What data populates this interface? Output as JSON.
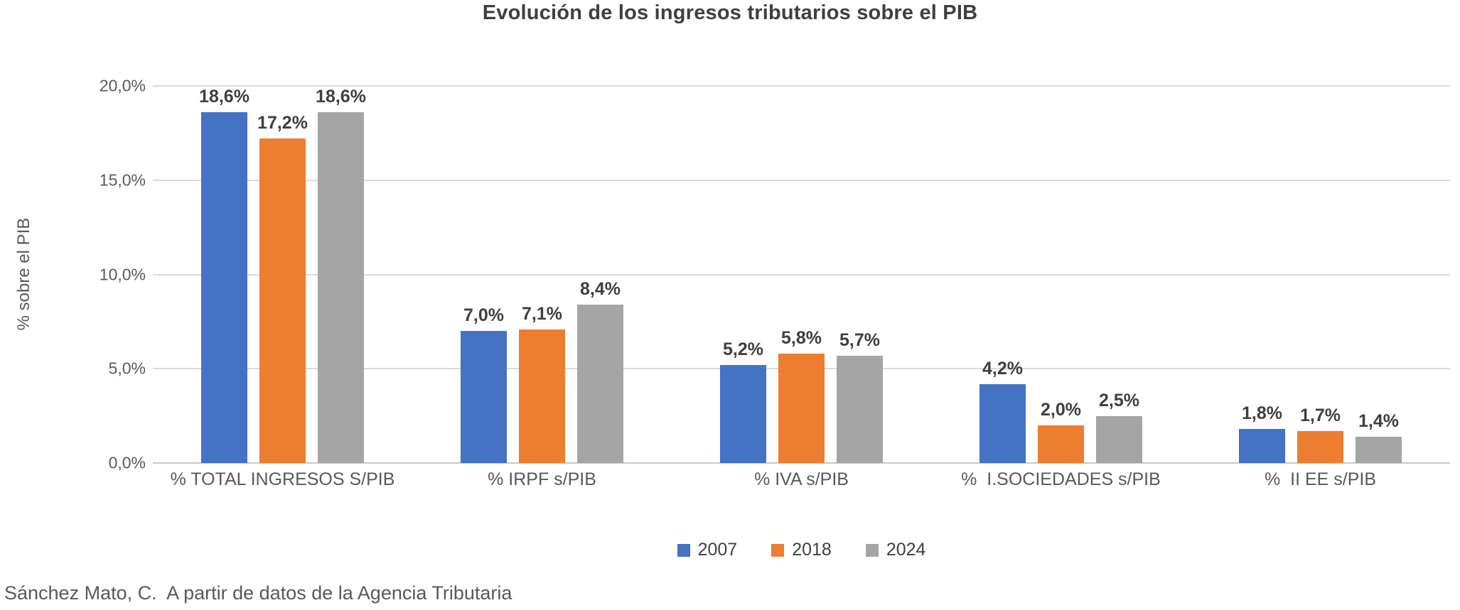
{
  "title": "Evolución de los ingresos tributarios sobre el PIB",
  "footer": "Sánchez Mato, C.  A partir de datos de la Agencia Tributaria",
  "colors": {
    "series_2007": "#4472C4",
    "series_2018": "#ED7D31",
    "series_2024": "#A5A5A5",
    "gridline": "#DADADA",
    "title_text": "#3F3F3F",
    "axis_text": "#595959"
  },
  "chart_data": {
    "type": "bar",
    "title": "Evolución de los ingresos tributarios sobre el PIB",
    "xlabel": "",
    "ylabel": "% sobre el PIB",
    "ylim": [
      0,
      20
    ],
    "ytick_values": [
      0,
      5,
      10,
      15,
      20
    ],
    "ytick_labels": [
      "0,0%",
      "5,0%",
      "10,0%",
      "15,0%",
      "20,0%"
    ],
    "grid": true,
    "legend_position": "bottom",
    "categories": [
      "% TOTAL INGRESOS S/PIB",
      "% IRPF s/PIB",
      "% IVA s/PIB",
      "%  I.SOCIEDADES s/PIB",
      "%  II EE s/PIB"
    ],
    "series": [
      {
        "name": "2007",
        "color": "#4472C4",
        "values": [
          18.6,
          7.0,
          5.2,
          4.2,
          1.8
        ],
        "value_labels": [
          "18,6%",
          "7,0%",
          "5,2%",
          "4,2%",
          "1,8%"
        ]
      },
      {
        "name": "2018",
        "color": "#ED7D31",
        "values": [
          17.2,
          7.1,
          5.8,
          2.0,
          1.7
        ],
        "value_labels": [
          "17,2%",
          "7,1%",
          "5,8%",
          "2,0%",
          "1,7%"
        ]
      },
      {
        "name": "2024",
        "color": "#A5A5A5",
        "values": [
          18.6,
          8.4,
          5.7,
          2.5,
          1.4
        ],
        "value_labels": [
          "18,6%",
          "8,4%",
          "5,7%",
          "2,5%",
          "1,4%"
        ]
      }
    ]
  }
}
